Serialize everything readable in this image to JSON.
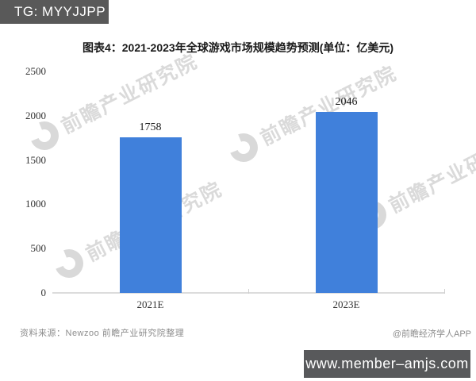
{
  "header": {
    "badge": "TG: MYYJJPP"
  },
  "chart_data": {
    "type": "bar",
    "title": "图表4：2021-2023年全球游戏市场规模趋势预测(单位：亿美元)",
    "unit": "亿美元",
    "categories": [
      "2021E",
      "2023E"
    ],
    "values": [
      1758,
      2046
    ],
    "value_labels": [
      "1758",
      "2046"
    ],
    "ylim": [
      0,
      2500
    ],
    "yticks": [
      0,
      500,
      1000,
      1500,
      2000,
      2500
    ],
    "grid": false,
    "legend": null,
    "bar_color": "#4080DB"
  },
  "watermark": {
    "text": "前瞻产业研究院"
  },
  "footer": {
    "source": "资料来源：Newzoo 前瞻产业研究院整理",
    "credit": "@前瞻经济学人APP"
  },
  "overlay": {
    "url": "www.member–amjs.com"
  },
  "colors": {
    "bar": "#4080DB",
    "badge_bg": "#595959",
    "url_box_bg": "#58595B",
    "axis_line": "#DCDCDC",
    "muted_text": "#8C8C8C"
  }
}
